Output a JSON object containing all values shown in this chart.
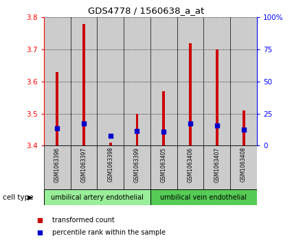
{
  "title": "GDS4778 / 1560638_a_at",
  "samples": [
    "GSM1063396",
    "GSM1063397",
    "GSM1063398",
    "GSM1063399",
    "GSM1063405",
    "GSM1063406",
    "GSM1063407",
    "GSM1063408"
  ],
  "red_values": [
    3.63,
    3.78,
    3.41,
    3.5,
    3.57,
    3.72,
    3.7,
    3.51
  ],
  "blue_values": [
    3.455,
    3.47,
    3.43,
    3.445,
    3.443,
    3.47,
    3.462,
    3.45
  ],
  "ylim": [
    3.4,
    3.8
  ],
  "yticks": [
    3.4,
    3.5,
    3.6,
    3.7,
    3.8
  ],
  "y2ticks": [
    0,
    25,
    50,
    75,
    100
  ],
  "y2labels": [
    "0",
    "25",
    "50",
    "75",
    "100%"
  ],
  "cell_type_groups": [
    {
      "label": "umbilical artery endothelial",
      "start": 0,
      "end": 4,
      "color": "#99ee99"
    },
    {
      "label": "umbilical vein endothelial",
      "start": 4,
      "end": 8,
      "color": "#55cc55"
    }
  ],
  "cell_type_label": "cell type",
  "legend_items": [
    {
      "color": "#cc0000",
      "label": "transformed count"
    },
    {
      "color": "#0000cc",
      "label": "percentile rank within the sample"
    }
  ],
  "red_color": "#cc0000",
  "blue_color": "#0000cc",
  "bar_bottom": 3.4,
  "sample_bg_color": "#cccccc",
  "bar_width": 0.1
}
